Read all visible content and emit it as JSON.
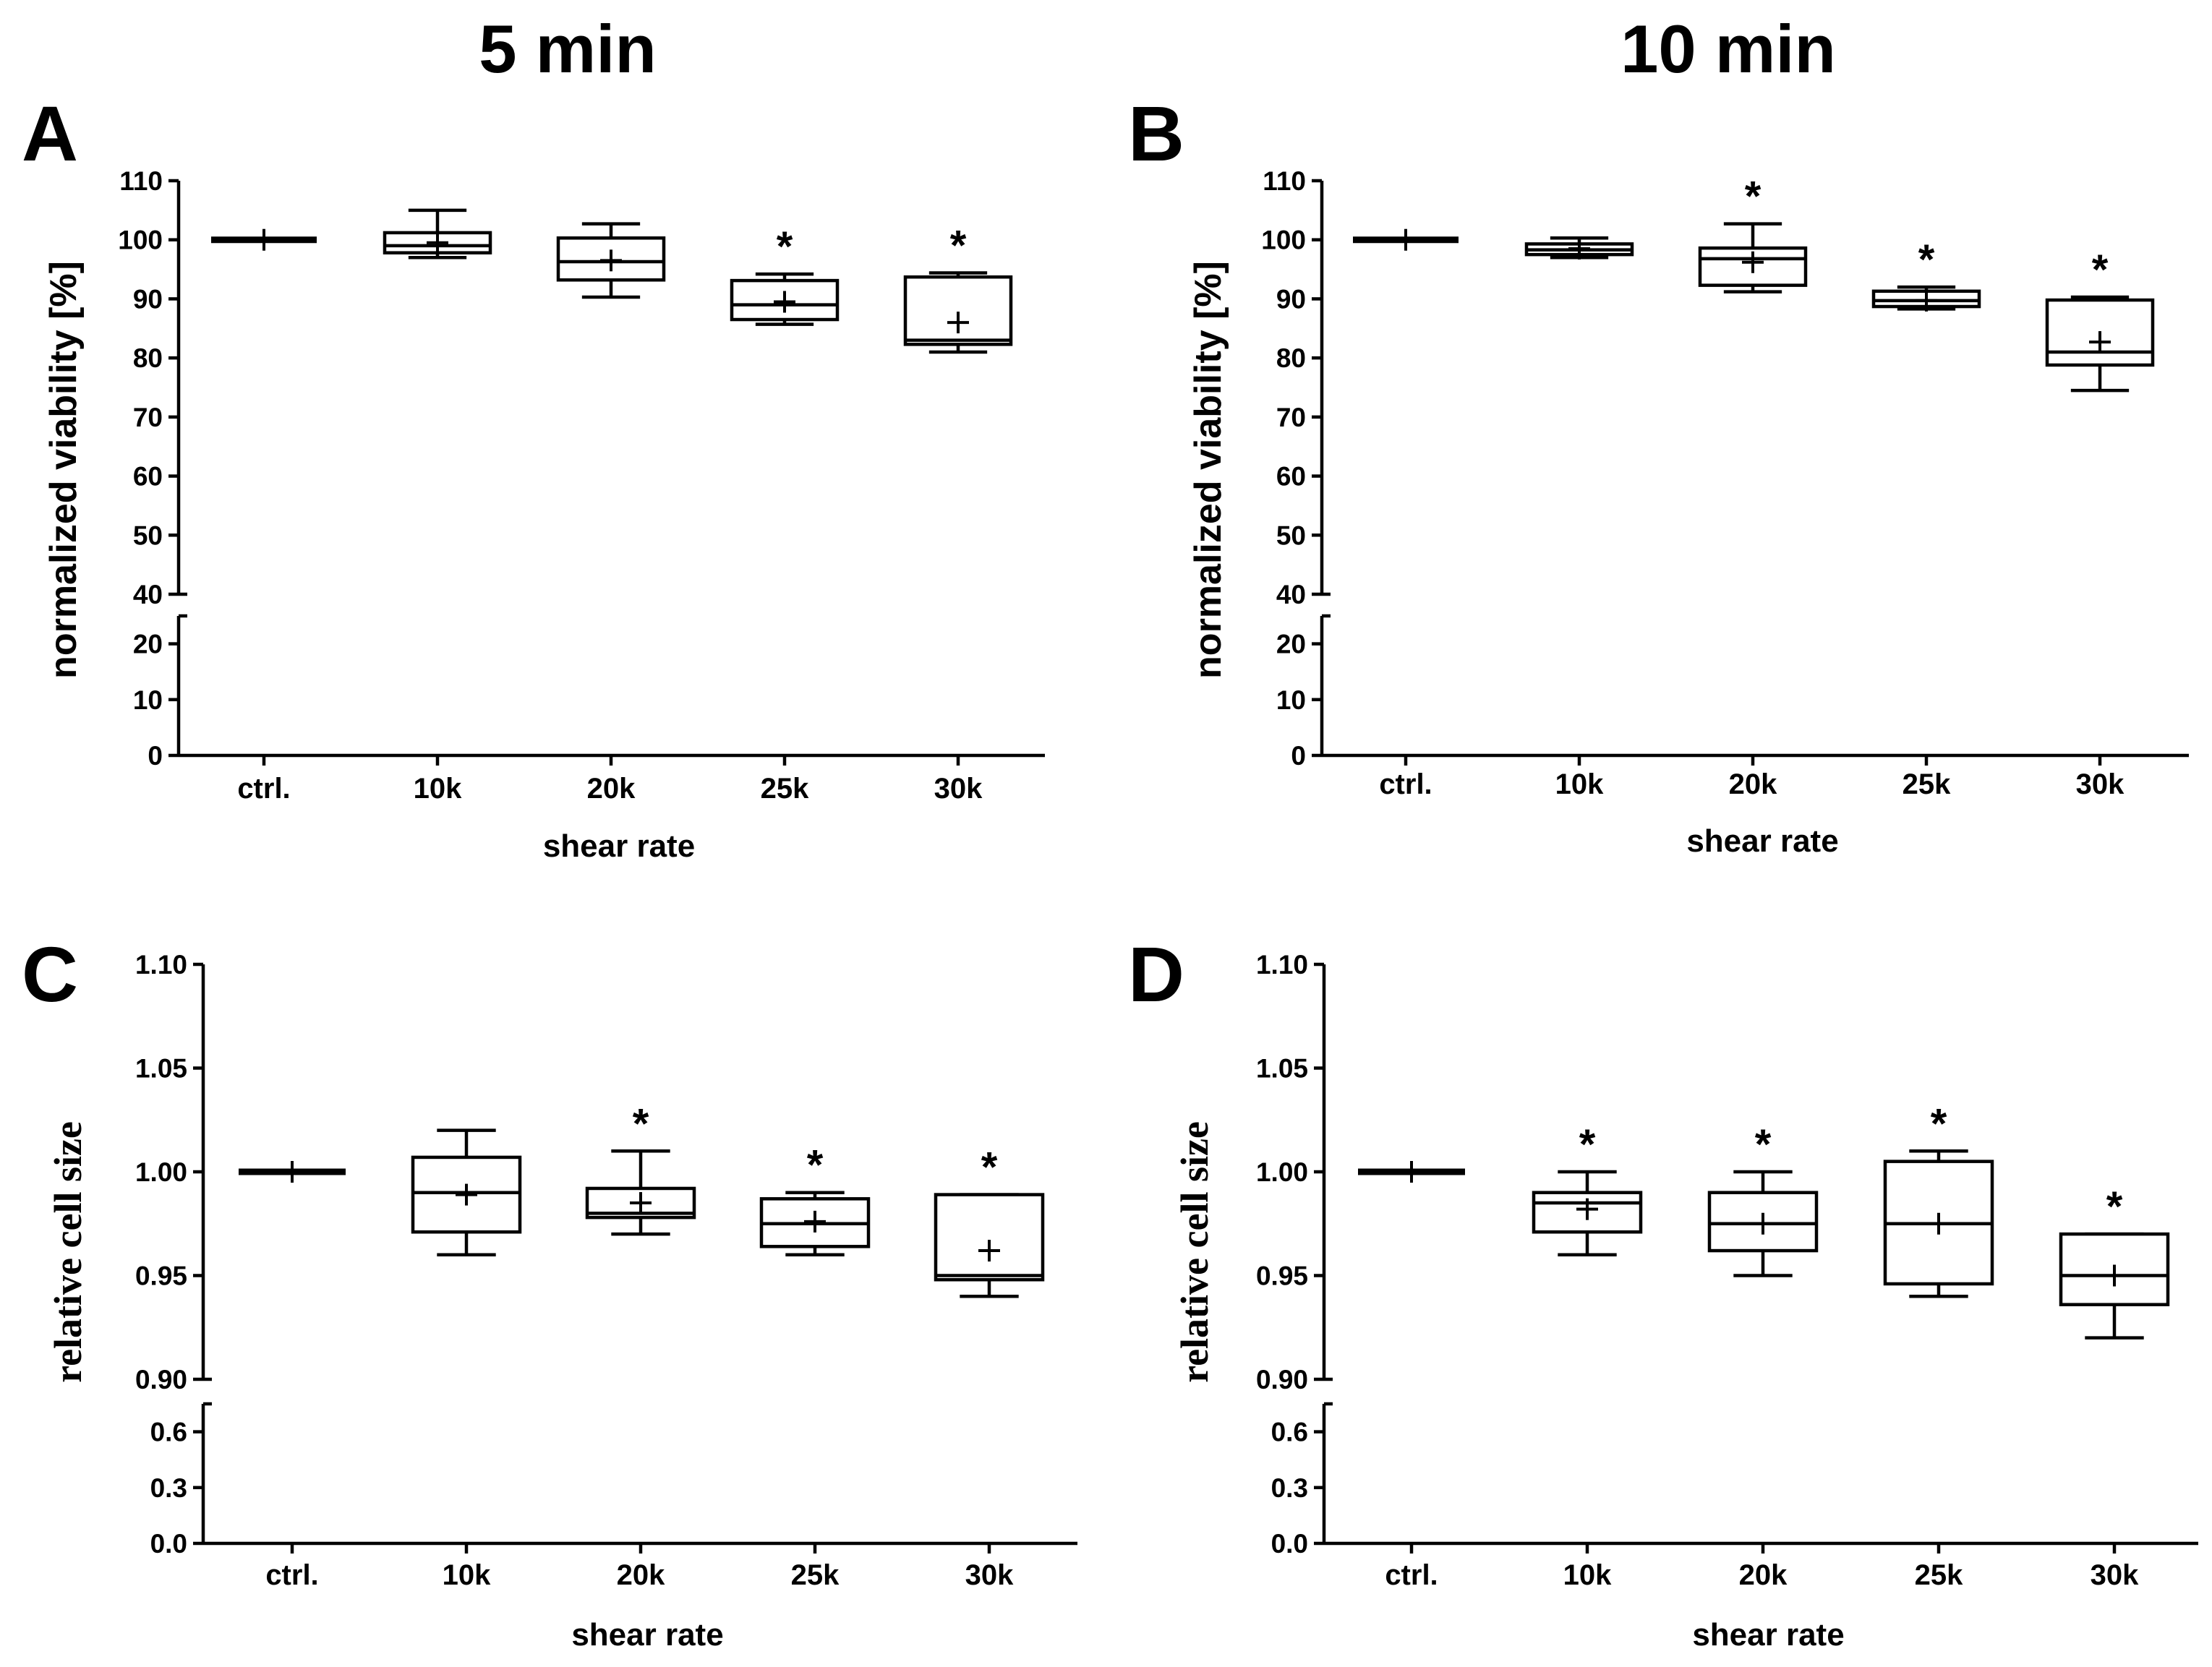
{
  "column_titles": [
    "5 min",
    "10 min"
  ],
  "chart_data": [
    {
      "type": "box",
      "panel_label": "A",
      "title": "5 min",
      "xlabel": "shear rate",
      "ylabel": "normalized viability [%]",
      "categories": [
        "ctrl.",
        "10k",
        "20k",
        "25k",
        "30k"
      ],
      "upper_range": [
        40,
        110
      ],
      "lower_range": [
        0,
        25
      ],
      "upper_ticks": [
        "40",
        "50",
        "60",
        "70",
        "80",
        "90",
        "100",
        "110"
      ],
      "lower_ticks": [
        "0",
        "10",
        "20"
      ],
      "boxes": [
        {
          "min": 100,
          "q1": 100,
          "median": 100,
          "q3": 100,
          "max": 100,
          "mean": 100,
          "significant": false
        },
        {
          "min": 97,
          "q1": 97.8,
          "median": 99,
          "q3": 101.2,
          "max": 105,
          "mean": 99.5,
          "significant": false
        },
        {
          "min": 90.3,
          "q1": 93.2,
          "median": 96.3,
          "q3": 100.3,
          "max": 102.7,
          "mean": 96.5,
          "significant": false
        },
        {
          "min": 85.7,
          "q1": 86.5,
          "median": 89,
          "q3": 93.1,
          "max": 94.2,
          "mean": 89.5,
          "significant": true
        },
        {
          "min": 81,
          "q1": 82.3,
          "median": 83,
          "q3": 93.7,
          "max": 94.4,
          "mean": 86,
          "significant": true
        }
      ],
      "significance_marker": "*"
    },
    {
      "type": "box",
      "panel_label": "B",
      "title": "10 min",
      "xlabel": "shear rate",
      "ylabel": "normalized viability [%]",
      "categories": [
        "ctrl.",
        "10k",
        "20k",
        "25k",
        "30k"
      ],
      "upper_range": [
        40,
        110
      ],
      "lower_range": [
        0,
        25
      ],
      "upper_ticks": [
        "40",
        "50",
        "60",
        "70",
        "80",
        "90",
        "100",
        "110"
      ],
      "lower_ticks": [
        "0",
        "10",
        "20"
      ],
      "boxes": [
        {
          "min": 100,
          "q1": 100,
          "median": 100,
          "q3": 100,
          "max": 100,
          "mean": 100,
          "significant": false
        },
        {
          "min": 97,
          "q1": 97.5,
          "median": 98.3,
          "q3": 99.3,
          "max": 100.3,
          "mean": 98.5,
          "significant": false
        },
        {
          "min": 91.2,
          "q1": 92.3,
          "median": 96.8,
          "q3": 98.6,
          "max": 102.7,
          "mean": 96.2,
          "significant": true
        },
        {
          "min": 88.3,
          "q1": 88.7,
          "median": 89.7,
          "q3": 91.3,
          "max": 92,
          "mean": 89.7,
          "significant": true
        },
        {
          "min": 74.5,
          "q1": 78.8,
          "median": 81,
          "q3": 89.8,
          "max": 90.3,
          "mean": 82.7,
          "significant": true
        }
      ],
      "significance_marker": "*"
    },
    {
      "type": "box",
      "panel_label": "C",
      "title": "5 min",
      "xlabel": "shear rate",
      "ylabel": "relative cell size",
      "categories": [
        "ctrl.",
        "10k",
        "20k",
        "25k",
        "30k"
      ],
      "upper_range": [
        0.9,
        1.1
      ],
      "lower_range": [
        0,
        0.75
      ],
      "upper_ticks": [
        "0.90",
        "0.95",
        "1.00",
        "1.05",
        "1.10"
      ],
      "lower_ticks": [
        "0.0",
        "0.3",
        "0.6"
      ],
      "boxes": [
        {
          "min": 1.0,
          "q1": 1.0,
          "median": 1.0,
          "q3": 1.0,
          "max": 1.0,
          "mean": 1.0,
          "significant": false
        },
        {
          "min": 0.96,
          "q1": 0.971,
          "median": 0.99,
          "q3": 1.007,
          "max": 1.02,
          "mean": 0.989,
          "significant": false
        },
        {
          "min": 0.97,
          "q1": 0.978,
          "median": 0.98,
          "q3": 0.992,
          "max": 1.01,
          "mean": 0.985,
          "significant": true
        },
        {
          "min": 0.96,
          "q1": 0.964,
          "median": 0.975,
          "q3": 0.987,
          "max": 0.99,
          "mean": 0.976,
          "significant": true
        },
        {
          "min": 0.94,
          "q1": 0.948,
          "median": 0.95,
          "q3": 0.989,
          "max": 0.989,
          "mean": 0.962,
          "significant": true
        }
      ],
      "significance_marker": "*"
    },
    {
      "type": "box",
      "panel_label": "D",
      "title": "10 min",
      "xlabel": "shear rate",
      "ylabel": "relative cell size",
      "categories": [
        "ctrl.",
        "10k",
        "20k",
        "25k",
        "30k"
      ],
      "upper_range": [
        0.9,
        1.1
      ],
      "lower_range": [
        0,
        0.75
      ],
      "upper_ticks": [
        "0.90",
        "0.95",
        "1.00",
        "1.05",
        "1.10"
      ],
      "lower_ticks": [
        "0.0",
        "0.3",
        "0.6"
      ],
      "boxes": [
        {
          "min": 1.0,
          "q1": 1.0,
          "median": 1.0,
          "q3": 1.0,
          "max": 1.0,
          "mean": 1.0,
          "significant": false
        },
        {
          "min": 0.96,
          "q1": 0.971,
          "median": 0.985,
          "q3": 0.99,
          "max": 1.0,
          "mean": 0.982,
          "significant": true
        },
        {
          "min": 0.95,
          "q1": 0.962,
          "median": 0.975,
          "q3": 0.99,
          "max": 1.0,
          "mean": 0.975,
          "significant": true
        },
        {
          "min": 0.94,
          "q1": 0.946,
          "median": 0.975,
          "q3": 1.005,
          "max": 1.01,
          "mean": 0.975,
          "significant": true
        },
        {
          "min": 0.92,
          "q1": 0.936,
          "median": 0.95,
          "q3": 0.97,
          "max": 0.97,
          "mean": 0.95,
          "significant": true
        }
      ],
      "significance_marker": "*"
    }
  ]
}
